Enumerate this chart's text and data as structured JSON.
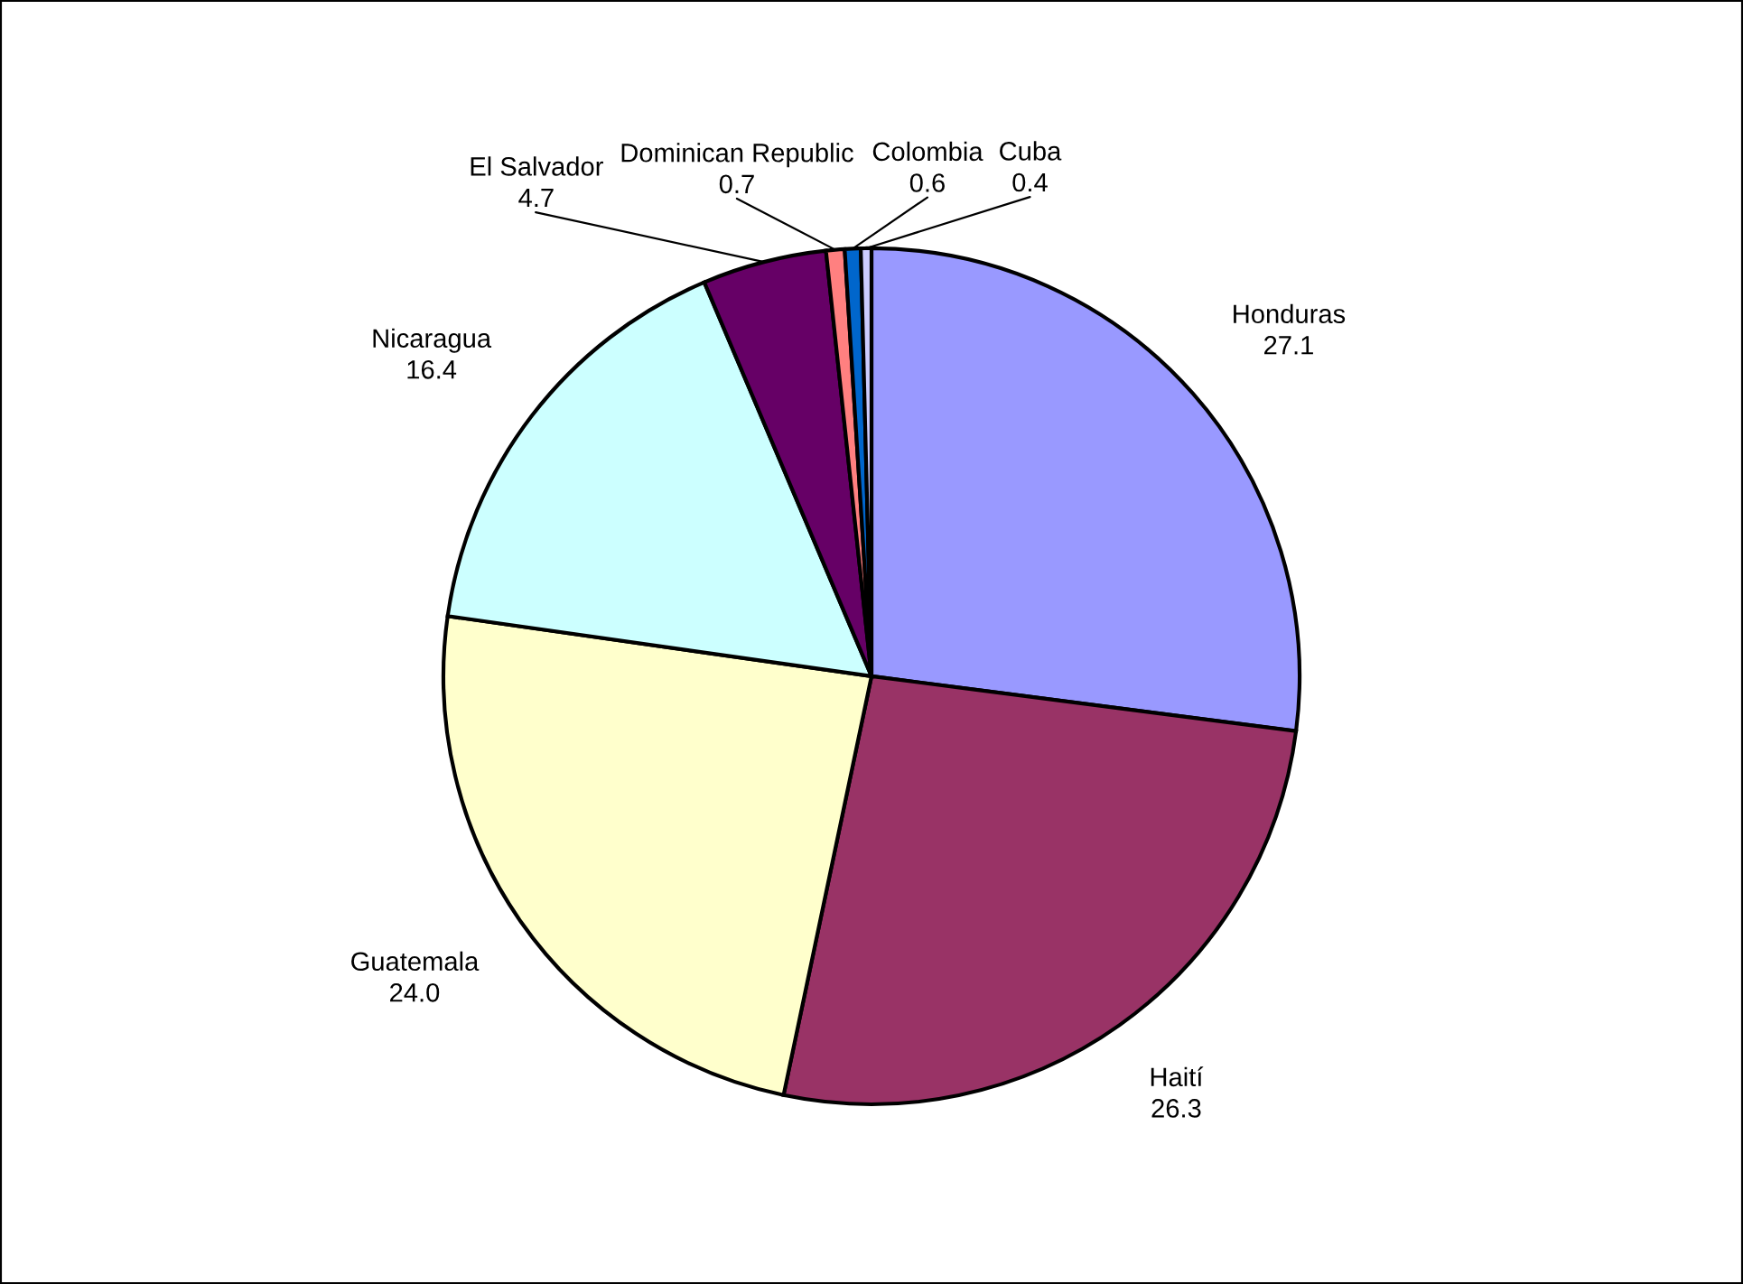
{
  "chart_data": {
    "type": "pie",
    "categories": [
      "Honduras",
      "Haití",
      "Guatemala",
      "Nicaragua",
      "El Salvador",
      "Dominican Republic",
      "Colombia",
      "Cuba"
    ],
    "values": [
      27.1,
      26.3,
      24.0,
      16.4,
      4.7,
      0.7,
      0.6,
      0.4
    ],
    "colors": [
      "#9999ff",
      "#993366",
      "#ffffcc",
      "#ccffff",
      "#660066",
      "#ff8080",
      "#0066cc",
      "#ccccff"
    ],
    "value_labels": [
      "27.1",
      "26.3",
      "24.0",
      "16.4",
      "4.7",
      "0.7",
      "0.6",
      "0.4"
    ]
  }
}
